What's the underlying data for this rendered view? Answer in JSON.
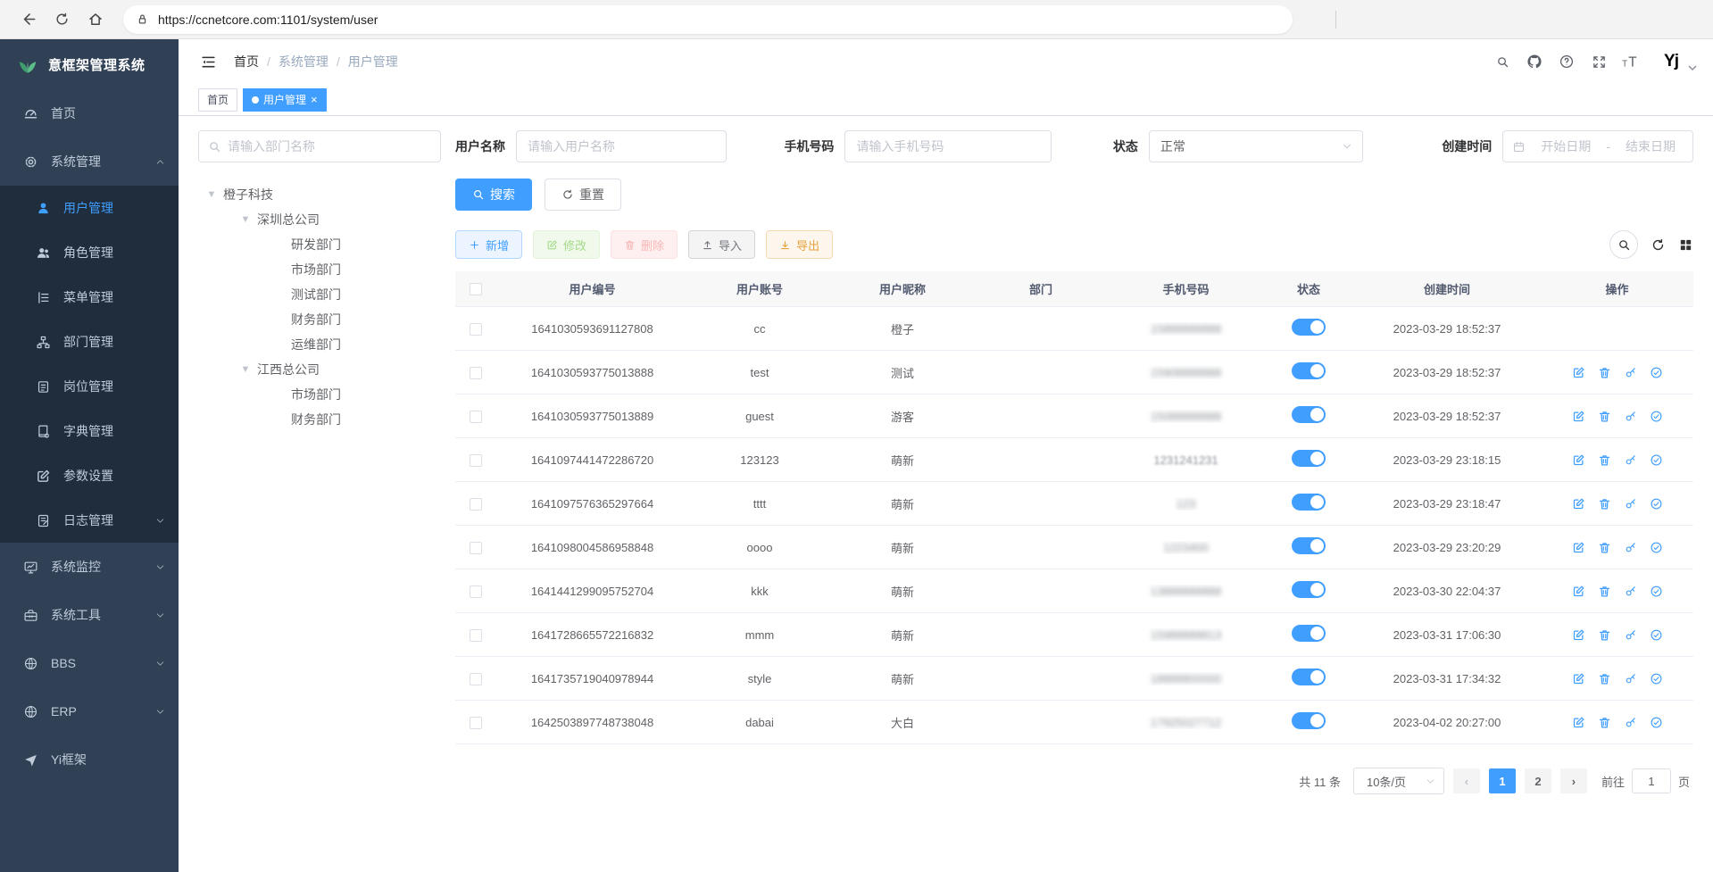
{
  "browser": {
    "url": "https://ccnetcore.com:1101/system/user",
    "nav_icons": [
      "back",
      "reload",
      "home"
    ],
    "url_icons": [
      "lock",
      "key",
      "read-aloud",
      "zoom-out",
      "star-plus"
    ],
    "right_icons": [
      "essentials",
      "split-screen",
      "favorites",
      "collections",
      "profile",
      "more",
      "copilot"
    ]
  },
  "sidebar": {
    "logo_title": "意框架管理系统",
    "items": [
      {
        "label": "首页",
        "icon": "dashboard"
      },
      {
        "label": "系统管理",
        "icon": "gear",
        "expanded": true,
        "chevron": "up",
        "children": [
          {
            "label": "用户管理",
            "icon": "user",
            "active": true
          },
          {
            "label": "角色管理",
            "icon": "users"
          },
          {
            "label": "菜单管理",
            "icon": "menu-tree"
          },
          {
            "label": "部门管理",
            "icon": "dept-tree"
          },
          {
            "label": "岗位管理",
            "icon": "post"
          },
          {
            "label": "字典管理",
            "icon": "dict"
          },
          {
            "label": "参数设置",
            "icon": "edit-square"
          },
          {
            "label": "日志管理",
            "icon": "log",
            "chevron": "down"
          }
        ]
      },
      {
        "label": "系统监控",
        "icon": "monitor",
        "chevron": "down"
      },
      {
        "label": "系统工具",
        "icon": "toolbox",
        "chevron": "down"
      },
      {
        "label": "BBS",
        "icon": "globe",
        "chevron": "down"
      },
      {
        "label": "ERP",
        "icon": "globe",
        "chevron": "down"
      },
      {
        "label": "Yi框架",
        "icon": "send"
      }
    ]
  },
  "topbar": {
    "breadcrumb": [
      "首页",
      "系统管理",
      "用户管理"
    ],
    "separator": "/",
    "right_icons": [
      "search",
      "github",
      "help",
      "fullscreen",
      "font-size"
    ],
    "avatar_text": "Yj"
  },
  "tabs": [
    {
      "label": "首页",
      "active": false,
      "closable": false
    },
    {
      "label": "用户管理",
      "active": true,
      "closable": true
    }
  ],
  "dept_panel": {
    "search_placeholder": "请输入部门名称",
    "tree": [
      {
        "label": "橙子科技",
        "expanded": true,
        "children": [
          {
            "label": "深圳总公司",
            "expanded": true,
            "children": [
              {
                "label": "研发部门"
              },
              {
                "label": "市场部门"
              },
              {
                "label": "测试部门"
              },
              {
                "label": "财务部门"
              },
              {
                "label": "运维部门"
              }
            ]
          },
          {
            "label": "江西总公司",
            "expanded": true,
            "children": [
              {
                "label": "市场部门"
              },
              {
                "label": "财务部门"
              }
            ]
          }
        ]
      }
    ]
  },
  "filters": {
    "username_label": "用户名称",
    "username_placeholder": "请输入用户名称",
    "phone_label": "手机号码",
    "phone_placeholder": "请输入手机号码",
    "status_label": "状态",
    "status_value": "正常",
    "created_label": "创建时间",
    "date_start_placeholder": "开始日期",
    "date_separator": "-",
    "date_end_placeholder": "结束日期",
    "search_button": "搜索",
    "reset_button": "重置"
  },
  "toolbar": {
    "add": "新增",
    "edit": "修改",
    "delete": "删除",
    "import": "导入",
    "export": "导出",
    "right_icons": [
      "search-circle",
      "refresh",
      "grid"
    ]
  },
  "table": {
    "columns": [
      "用户编号",
      "用户账号",
      "用户昵称",
      "部门",
      "手机号码",
      "状态",
      "创建时间",
      "操作"
    ],
    "action_icons": [
      "edit-square",
      "trash",
      "key-reset",
      "check-circle"
    ],
    "rows": [
      {
        "id": "1641030593691127808",
        "account": "cc",
        "nickname": "橙子",
        "dept": "",
        "phone": "15888888888",
        "masked": true,
        "status": true,
        "created": "2023-03-29 18:52:37",
        "actions": false
      },
      {
        "id": "1641030593775013888",
        "account": "test",
        "nickname": "测试",
        "dept": "",
        "phone": "15908888888",
        "masked": true,
        "status": true,
        "created": "2023-03-29 18:52:37",
        "actions": true
      },
      {
        "id": "1641030593775013889",
        "account": "guest",
        "nickname": "游客",
        "dept": "",
        "phone": "15088888888",
        "masked": true,
        "status": true,
        "created": "2023-03-29 18:52:37",
        "actions": true
      },
      {
        "id": "1641097441472286720",
        "account": "123123",
        "nickname": "萌新",
        "dept": "",
        "phone": "1231241231",
        "masked": "light",
        "status": true,
        "created": "2023-03-29 23:18:15",
        "actions": true
      },
      {
        "id": "1641097576365297664",
        "account": "tttt",
        "nickname": "萌新",
        "dept": "",
        "phone": "123",
        "masked": true,
        "status": true,
        "created": "2023-03-29 23:18:47",
        "actions": true
      },
      {
        "id": "1641098004586958848",
        "account": "oooo",
        "nickname": "萌新",
        "dept": "",
        "phone": "1223400",
        "masked": true,
        "status": true,
        "created": "2023-03-29 23:20:29",
        "actions": true
      },
      {
        "id": "1641441299095752704",
        "account": "kkk",
        "nickname": "萌新",
        "dept": "",
        "phone": "13888888888",
        "masked": true,
        "status": true,
        "created": "2023-03-30 22:04:37",
        "actions": true
      },
      {
        "id": "1641728665572216832",
        "account": "mmm",
        "nickname": "萌新",
        "dept": "",
        "phone": "15988888813",
        "masked": true,
        "status": true,
        "created": "2023-03-31 17:06:30",
        "actions": true
      },
      {
        "id": "1641735719040978944",
        "account": "style",
        "nickname": "萌新",
        "dept": "",
        "phone": "18888800000",
        "masked": true,
        "status": true,
        "created": "2023-03-31 17:34:32",
        "actions": true
      },
      {
        "id": "1642503897748738048",
        "account": "dabai",
        "nickname": "大白",
        "dept": "",
        "phone": "17925027712",
        "masked": true,
        "status": true,
        "created": "2023-04-02 20:27:00",
        "actions": true
      }
    ]
  },
  "pagination": {
    "total_label": "共 11 条",
    "page_size_label": "10条/页",
    "pages": [
      "1",
      "2"
    ],
    "active_page": "1",
    "prev_enabled": false,
    "next_enabled": true,
    "goto_label": "前往",
    "goto_value": "1",
    "page_unit_label": "页"
  },
  "colors": {
    "accent": "#409eff",
    "sidebar_bg": "#304156",
    "submenu_bg": "#1f2d3d",
    "toggle_on": "#409eff",
    "copilot_blue": "#1e8fe0",
    "logo_green": "#4db07a"
  }
}
